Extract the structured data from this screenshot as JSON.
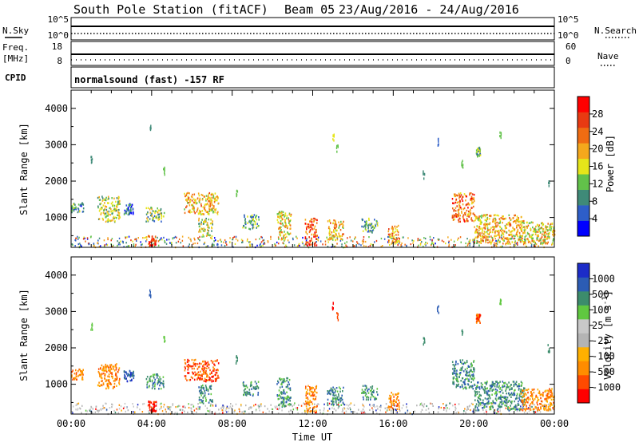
{
  "title": "South Pole Station (fitACF)",
  "beam_label": "Beam 05",
  "date_range": "23/Aug/2016 - 24/Aug/2016",
  "top_panels": {
    "nsky_label": "N.Sky",
    "nsearch_label": "N.Search",
    "nsky_ticks": [
      "10^5",
      "10^0"
    ],
    "nsearch_ticks": [
      "10^5",
      "10^0"
    ],
    "freq_label_1": "Freq.",
    "freq_label_2": "[MHz]",
    "freq_ticks": [
      "18",
      "8"
    ],
    "nave_label": "Nave",
    "nave_ticks": [
      "60",
      "0"
    ],
    "cpid_label": "CPID",
    "cpid_text": "normalsound (fast) -157 RF"
  },
  "colors": {
    "power": [
      "#0000ff",
      "#2e5ec8",
      "#3f8a78",
      "#62c24a",
      "#e5e51a",
      "#f5a81c",
      "#f06c12",
      "#e83a12",
      "#ff0000"
    ],
    "velocity": [
      "#ff0000",
      "#ff4a00",
      "#ff8c00",
      "#ffb000",
      "#b4b4b4",
      "#c8c8c8",
      "#60c840",
      "#3c8c6c",
      "#2c5cb4",
      "#1c2cc8"
    ]
  },
  "chart_data": [
    {
      "type": "heatmap",
      "name": "power",
      "xlabel": "",
      "ylabel": "Slant Range [km]",
      "ylim": [
        180,
        4500
      ],
      "y_ticks": [
        1000,
        2000,
        3000,
        4000
      ],
      "colorbar_label": "Power [dB]",
      "colorbar_ticks": [
        "4",
        "8",
        "12",
        "16",
        "20",
        "24",
        "28"
      ],
      "clim": [
        0,
        30
      ],
      "blobs": [
        {
          "t": [
            0.0,
            0.6
          ],
          "r": [
            1150,
            1450
          ],
          "v": 8
        },
        {
          "t": [
            1.3,
            2.4
          ],
          "r": [
            900,
            1600
          ],
          "v": 14
        },
        {
          "t": [
            2.6,
            3.1
          ],
          "r": [
            1100,
            1400
          ],
          "v": 6
        },
        {
          "t": [
            3.8,
            4.2
          ],
          "r": [
            250,
            550
          ],
          "v": 26
        },
        {
          "t": [
            3.7,
            4.6
          ],
          "r": [
            900,
            1300
          ],
          "v": 12
        },
        {
          "t": [
            5.6,
            7.3
          ],
          "r": [
            1100,
            1700
          ],
          "v": 18
        },
        {
          "t": [
            6.3,
            7.0
          ],
          "r": [
            500,
            1000
          ],
          "v": 14
        },
        {
          "t": [
            8.5,
            9.3
          ],
          "r": [
            700,
            1100
          ],
          "v": 10
        },
        {
          "t": [
            10.2,
            10.9
          ],
          "r": [
            400,
            1200
          ],
          "v": 16
        },
        {
          "t": [
            11.6,
            12.2
          ],
          "r": [
            250,
            1000
          ],
          "v": 24
        },
        {
          "t": [
            12.7,
            13.5
          ],
          "r": [
            400,
            950
          ],
          "v": 18
        },
        {
          "t": [
            14.4,
            15.2
          ],
          "r": [
            600,
            1000
          ],
          "v": 10
        },
        {
          "t": [
            15.7,
            16.3
          ],
          "r": [
            300,
            800
          ],
          "v": 20
        },
        {
          "t": [
            18.9,
            20.0
          ],
          "r": [
            900,
            1700
          ],
          "v": 22
        },
        {
          "t": [
            20.1,
            20.3
          ],
          "r": [
            2700,
            2950
          ],
          "v": 10
        },
        {
          "t": [
            20.0,
            22.5
          ],
          "r": [
            300,
            1100
          ],
          "v": 18
        },
        {
          "t": [
            22.3,
            24.0
          ],
          "r": [
            300,
            900
          ],
          "v": 16
        }
      ],
      "specks": [
        {
          "t": 3.9,
          "r": 3500,
          "v": 8
        },
        {
          "t": 4.6,
          "r": 2300,
          "v": 10
        },
        {
          "t": 1.0,
          "r": 2600,
          "v": 8
        },
        {
          "t": 8.2,
          "r": 1700,
          "v": 12
        },
        {
          "t": 13.0,
          "r": 3200,
          "v": 14
        },
        {
          "t": 13.2,
          "r": 2900,
          "v": 10
        },
        {
          "t": 17.5,
          "r": 2200,
          "v": 8
        },
        {
          "t": 18.2,
          "r": 3100,
          "v": 6
        },
        {
          "t": 19.4,
          "r": 2500,
          "v": 10
        },
        {
          "t": 21.3,
          "r": 3300,
          "v": 12
        },
        {
          "t": 23.7,
          "r": 2000,
          "v": 8
        }
      ],
      "ground_band": [
        200,
        500
      ]
    },
    {
      "type": "heatmap",
      "name": "velocity",
      "xlabel": "Time UT",
      "ylabel": "Slant Range [km]",
      "ylim": [
        180,
        4500
      ],
      "y_ticks": [
        1000,
        2000,
        3000,
        4000
      ],
      "x_ticks": [
        "00:00",
        "04:00",
        "08:00",
        "12:00",
        "16:00",
        "20:00",
        "00:00"
      ],
      "xlim": [
        0,
        24
      ],
      "colorbar_label": "Velocity [m s^-1]",
      "colorbar_ticks": [
        "-1000",
        "-500",
        "-100",
        "-25",
        "25",
        "100",
        "500",
        "1000"
      ],
      "blobs": [
        {
          "t": [
            0.0,
            0.6
          ],
          "r": [
            1150,
            1450
          ],
          "v": 2
        },
        {
          "t": [
            1.3,
            2.4
          ],
          "r": [
            900,
            1600
          ],
          "v": 2
        },
        {
          "t": [
            2.6,
            3.1
          ],
          "r": [
            1100,
            1400
          ],
          "v": 8
        },
        {
          "t": [
            3.8,
            4.2
          ],
          "r": [
            250,
            550
          ],
          "v": 0
        },
        {
          "t": [
            3.7,
            4.6
          ],
          "r": [
            900,
            1300
          ],
          "v": 7
        },
        {
          "t": [
            5.6,
            7.3
          ],
          "r": [
            1100,
            1700
          ],
          "v": 1
        },
        {
          "t": [
            6.3,
            7.0
          ],
          "r": [
            500,
            1000
          ],
          "v": 7
        },
        {
          "t": [
            8.5,
            9.3
          ],
          "r": [
            700,
            1100
          ],
          "v": 7
        },
        {
          "t": [
            10.2,
            10.9
          ],
          "r": [
            400,
            1200
          ],
          "v": 7
        },
        {
          "t": [
            11.6,
            12.2
          ],
          "r": [
            250,
            1000
          ],
          "v": 2
        },
        {
          "t": [
            12.7,
            13.5
          ],
          "r": [
            400,
            950
          ],
          "v": 7
        },
        {
          "t": [
            14.4,
            15.2
          ],
          "r": [
            600,
            1000
          ],
          "v": 7
        },
        {
          "t": [
            15.7,
            16.3
          ],
          "r": [
            300,
            800
          ],
          "v": 2
        },
        {
          "t": [
            18.9,
            20.0
          ],
          "r": [
            900,
            1700
          ],
          "v": 7
        },
        {
          "t": [
            20.1,
            20.3
          ],
          "r": [
            2700,
            2950
          ],
          "v": 1
        },
        {
          "t": [
            20.0,
            22.5
          ],
          "r": [
            300,
            1100
          ],
          "v": 7
        },
        {
          "t": [
            22.3,
            24.0
          ],
          "r": [
            300,
            900
          ],
          "v": 2
        }
      ],
      "specks": [
        {
          "t": 3.9,
          "r": 3500,
          "v": 8
        },
        {
          "t": 4.6,
          "r": 2300,
          "v": 6
        },
        {
          "t": 1.0,
          "r": 2600,
          "v": 6
        },
        {
          "t": 8.2,
          "r": 1700,
          "v": 7
        },
        {
          "t": 13.0,
          "r": 3200,
          "v": 0
        },
        {
          "t": 13.2,
          "r": 2900,
          "v": 1
        },
        {
          "t": 17.5,
          "r": 2200,
          "v": 7
        },
        {
          "t": 18.2,
          "r": 3100,
          "v": 8
        },
        {
          "t": 19.4,
          "r": 2500,
          "v": 7
        },
        {
          "t": 21.3,
          "r": 3300,
          "v": 6
        },
        {
          "t": 23.7,
          "r": 2000,
          "v": 7
        }
      ],
      "ground_band": [
        200,
        500
      ]
    }
  ]
}
